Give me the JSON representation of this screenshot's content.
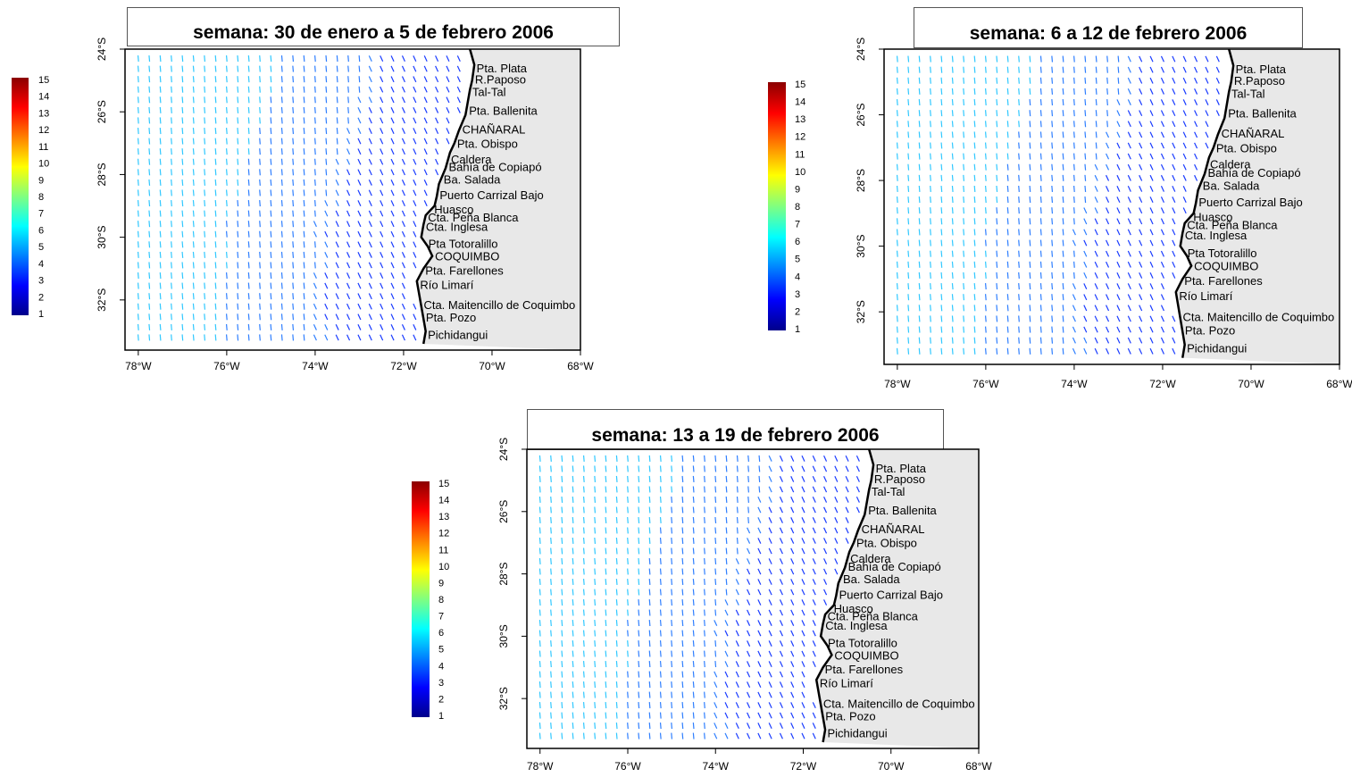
{
  "places": [
    "Pta. Plata",
    "R.Paposo",
    "Tal-Tal",
    "Pta. Ballenita",
    "CHAÑARAL",
    "Pta. Obispo",
    "Caldera",
    "Bahía de Copiapó",
    "Ba. Salada",
    "Puerto Carrizal Bajo",
    "Huasco",
    "Cta. Peña Blanca",
    "Cta. Inglesa",
    "Pta Totoralillo",
    "COQUIMBO",
    "Pta. Farellones",
    "Río Limarí",
    "Cta. Maitencillo de Coquimbo",
    "Pta. Pozo",
    "Pichidangui"
  ],
  "place_lat": [
    24.6,
    24.95,
    25.35,
    25.95,
    26.55,
    27.0,
    27.5,
    27.75,
    28.15,
    28.65,
    29.1,
    29.35,
    29.65,
    30.2,
    30.6,
    31.05,
    31.5,
    32.15,
    32.55,
    33.1
  ],
  "x_ticks": [
    "78°W",
    "76°W",
    "74°W",
    "72°W",
    "70°W",
    "68°W"
  ],
  "x_tick_lons": [
    78,
    76,
    74,
    72,
    70,
    68
  ],
  "y_ticks": [
    "24°S",
    "26°S",
    "28°S",
    "30°S",
    "32°S"
  ],
  "y_tick_lats": [
    24,
    26,
    28,
    30,
    32
  ],
  "colorbar_ticks": [
    "15",
    "14",
    "13",
    "12",
    "11",
    "10",
    "9",
    "8",
    "7",
    "6",
    "5",
    "4",
    "3",
    "2",
    "1"
  ],
  "colorbar_colors": [
    "#00008b",
    "#0000ff",
    "#0080ff",
    "#00ffff",
    "#80ff80",
    "#ffff00",
    "#ff8000",
    "#ff0000",
    "#8b0000"
  ],
  "coast_lon": [
    70.5,
    70.4,
    70.45,
    70.5,
    70.55,
    70.6,
    70.75,
    70.85,
    70.95,
    71.05,
    71.2,
    71.25,
    71.3,
    71.5,
    71.55,
    71.6,
    71.45,
    71.35,
    71.55,
    71.7,
    71.65,
    71.6,
    71.55,
    71.5,
    71.55
  ],
  "coast_lat": [
    24.0,
    24.5,
    25.0,
    25.3,
    25.7,
    26.1,
    26.6,
    27.0,
    27.3,
    27.8,
    28.3,
    28.7,
    29.0,
    29.3,
    29.6,
    30.0,
    30.3,
    30.6,
    31.0,
    31.4,
    31.8,
    32.2,
    32.6,
    33.0,
    33.4
  ],
  "maps": [
    {
      "title": "semana: 30 de enero a 5 de febrero 2006"
    },
    {
      "title": "semana: 6 a 12 de febrero 2006"
    },
    {
      "title": "semana: 13 a 19 de febrero 2006"
    }
  ]
}
